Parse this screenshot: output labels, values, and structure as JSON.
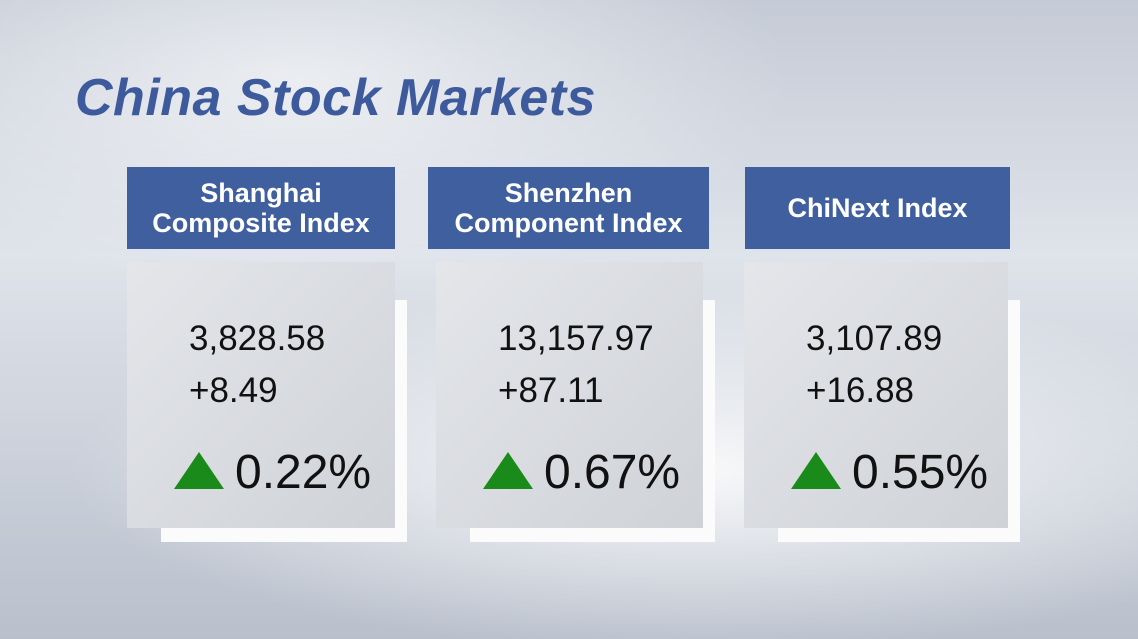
{
  "header": {
    "title": "China Stock Markets"
  },
  "cards": [
    {
      "name_lines": [
        "Shanghai",
        "Composite Index"
      ],
      "value": "3,828.58",
      "change": "+8.49",
      "percent": "0.22%"
    },
    {
      "name_lines": [
        "Shenzhen",
        "Component Index"
      ],
      "value": "13,157.97",
      "change": "+87.11",
      "percent": "0.67%"
    },
    {
      "name_lines": [
        "ChiNext Index"
      ],
      "value": "3,107.89",
      "change": "+16.88",
      "percent": "0.55%"
    }
  ]
}
